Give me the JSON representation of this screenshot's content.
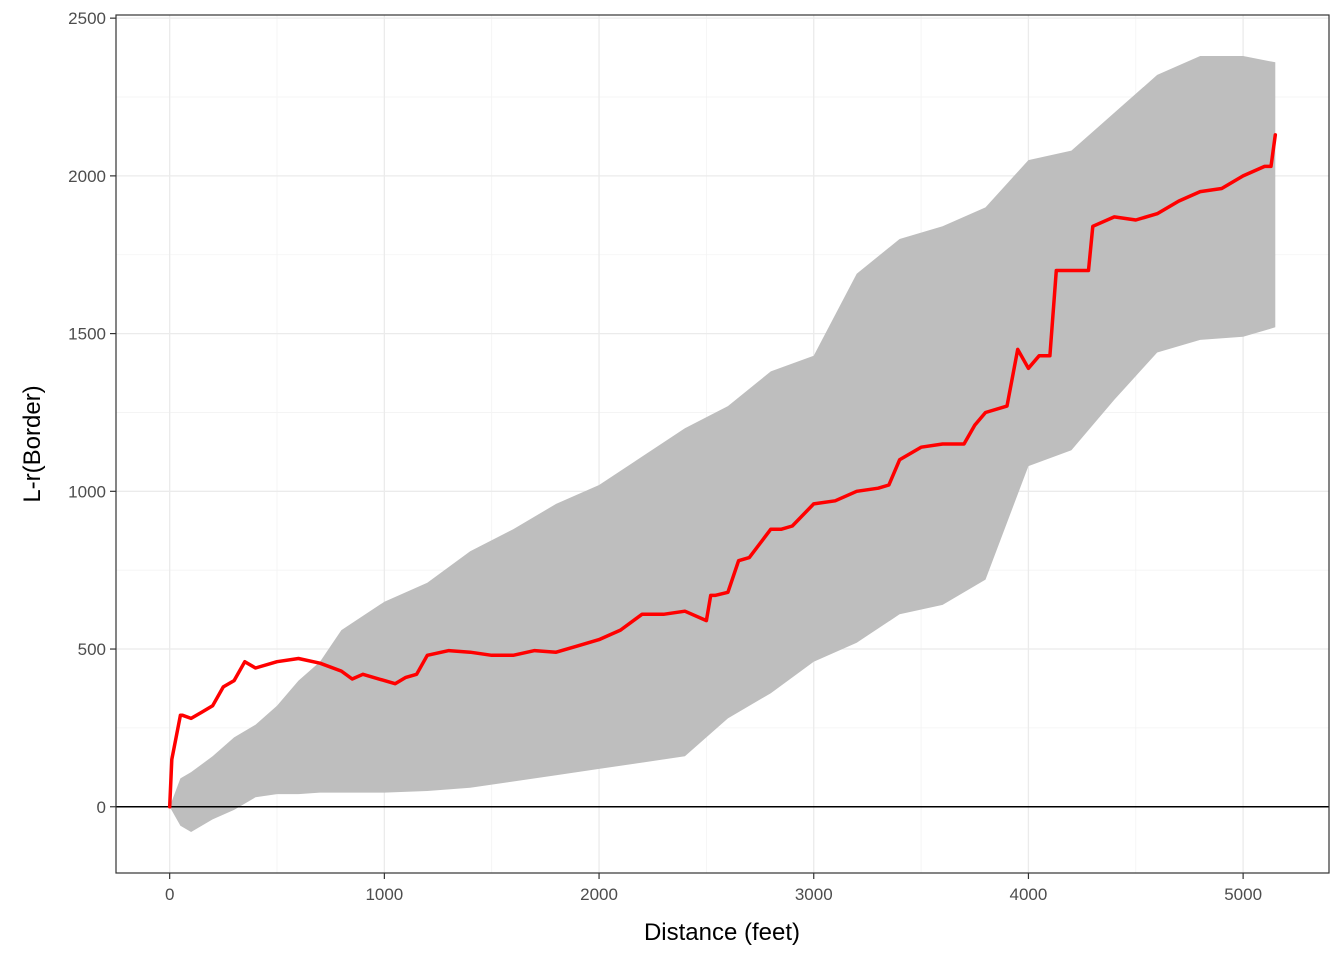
{
  "chart_data": {
    "type": "line",
    "title": "",
    "xlabel": "Distance (feet)",
    "ylabel": "L-r(Border)",
    "xlim": [
      -250,
      5400
    ],
    "ylim": [
      -210,
      2510
    ],
    "xticks": [
      0,
      1000,
      2000,
      3000,
      4000,
      5000
    ],
    "yticks": [
      0,
      500,
      1000,
      1500,
      2000,
      2500
    ],
    "xtick_labels": [
      "0",
      "1000",
      "2000",
      "3000",
      "4000",
      "5000"
    ],
    "ytick_labels": [
      "0",
      "500",
      "1000",
      "1500",
      "2000",
      "2500"
    ],
    "grid": true,
    "reference_line": {
      "y": 0,
      "color": "#000000"
    },
    "envelope": {
      "color": "#bebebe",
      "x": [
        0,
        50,
        100,
        200,
        300,
        400,
        500,
        600,
        700,
        800,
        1000,
        1200,
        1400,
        1600,
        1800,
        2000,
        2200,
        2400,
        2600,
        2800,
        3000,
        3200,
        3400,
        3600,
        3800,
        4000,
        4200,
        4400,
        4600,
        4800,
        5000,
        5150
      ],
      "lower": [
        0,
        -60,
        -80,
        -40,
        -10,
        30,
        40,
        40,
        45,
        45,
        45,
        50,
        60,
        80,
        100,
        120,
        140,
        160,
        280,
        360,
        460,
        520,
        610,
        640,
        720,
        1080,
        1130,
        1290,
        1440,
        1480,
        1490,
        1520
      ],
      "upper": [
        0,
        90,
        110,
        160,
        220,
        260,
        320,
        400,
        460,
        560,
        650,
        710,
        810,
        880,
        960,
        1020,
        1110,
        1200,
        1270,
        1380,
        1430,
        1690,
        1800,
        1840,
        1900,
        2050,
        2080,
        2200,
        2320,
        2380,
        2380,
        2360
      ]
    },
    "series": [
      {
        "color": "#ff0000",
        "x": [
          0,
          10,
          30,
          50,
          60,
          100,
          150,
          200,
          250,
          300,
          350,
          400,
          500,
          600,
          700,
          800,
          850,
          900,
          1000,
          1050,
          1100,
          1150,
          1200,
          1300,
          1400,
          1500,
          1600,
          1700,
          1800,
          1900,
          2000,
          2100,
          2200,
          2300,
          2400,
          2500,
          2520,
          2540,
          2600,
          2650,
          2700,
          2800,
          2850,
          2900,
          3000,
          3100,
          3200,
          3300,
          3350,
          3400,
          3500,
          3600,
          3700,
          3750,
          3800,
          3900,
          3950,
          4000,
          4050,
          4100,
          4130,
          4200,
          4280,
          4300,
          4400,
          4500,
          4600,
          4700,
          4800,
          4900,
          5000,
          5100,
          5130,
          5150
        ],
        "y": [
          0,
          150,
          220,
          290,
          290,
          280,
          300,
          320,
          380,
          400,
          460,
          440,
          460,
          470,
          455,
          430,
          405,
          420,
          400,
          390,
          410,
          420,
          480,
          495,
          490,
          480,
          480,
          495,
          490,
          510,
          530,
          560,
          610,
          610,
          620,
          590,
          670,
          670,
          680,
          780,
          790,
          880,
          880,
          890,
          960,
          970,
          1000,
          1010,
          1020,
          1100,
          1140,
          1150,
          1150,
          1210,
          1250,
          1270,
          1450,
          1390,
          1430,
          1430,
          1700,
          1700,
          1700,
          1840,
          1870,
          1860,
          1880,
          1920,
          1950,
          1960,
          2000,
          2030,
          2030,
          2130
        ]
      }
    ]
  }
}
